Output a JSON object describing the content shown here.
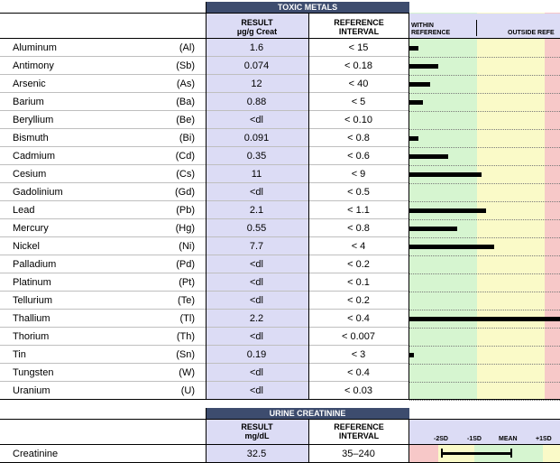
{
  "toxic": {
    "title": "TOXIC METALS",
    "result_header_1": "RESULT",
    "result_header_2": "µg/g Creat",
    "ref_header_1": "REFERENCE",
    "ref_header_2": "INTERVAL",
    "within_1": "WITHIN",
    "within_2": "REFERENCE",
    "outside": "OUTSIDE REFE",
    "rows": [
      {
        "name": "Aluminum",
        "symbol": "(Al)",
        "result": "1.6",
        "ref": "< 15",
        "bar_fraction": 0.06
      },
      {
        "name": "Antimony",
        "symbol": "(Sb)",
        "result": "0.074",
        "ref": "< 0.18",
        "bar_fraction": 0.19
      },
      {
        "name": "Arsenic",
        "symbol": "(As)",
        "result": "12",
        "ref": "< 40",
        "bar_fraction": 0.14
      },
      {
        "name": "Barium",
        "symbol": "(Ba)",
        "result": "0.88",
        "ref": "< 5",
        "bar_fraction": 0.09
      },
      {
        "name": "Beryllium",
        "symbol": "(Be)",
        "result": "<dl",
        "ref": "< 0.10",
        "bar_fraction": 0
      },
      {
        "name": "Bismuth",
        "symbol": "(Bi)",
        "result": "0.091",
        "ref": "< 0.8",
        "bar_fraction": 0.06
      },
      {
        "name": "Cadmium",
        "symbol": "(Cd)",
        "result": "0.35",
        "ref": "< 0.6",
        "bar_fraction": 0.26
      },
      {
        "name": "Cesium",
        "symbol": "(Cs)",
        "result": "11",
        "ref": "< 9",
        "bar_fraction": 0.48
      },
      {
        "name": "Gadolinium",
        "symbol": "(Gd)",
        "result": "<dl",
        "ref": "< 0.5",
        "bar_fraction": 0
      },
      {
        "name": "Lead",
        "symbol": "(Pb)",
        "result": "2.1",
        "ref": "< 1.1",
        "bar_fraction": 0.51
      },
      {
        "name": "Mercury",
        "symbol": "(Hg)",
        "result": "0.55",
        "ref": "< 0.8",
        "bar_fraction": 0.32
      },
      {
        "name": "Nickel",
        "symbol": "(Ni)",
        "result": "7.7",
        "ref": "< 4",
        "bar_fraction": 0.56
      },
      {
        "name": "Palladium",
        "symbol": "(Pd)",
        "result": "<dl",
        "ref": "< 0.2",
        "bar_fraction": 0
      },
      {
        "name": "Platinum",
        "symbol": "(Pt)",
        "result": "<dl",
        "ref": "< 0.1",
        "bar_fraction": 0
      },
      {
        "name": "Tellurium",
        "symbol": "(Te)",
        "result": "<dl",
        "ref": "< 0.2",
        "bar_fraction": 0
      },
      {
        "name": "Thallium",
        "symbol": "(Tl)",
        "result": "2.2",
        "ref": "< 0.4",
        "bar_fraction": 1.0
      },
      {
        "name": "Thorium",
        "symbol": "(Th)",
        "result": "<dl",
        "ref": "< 0.007",
        "bar_fraction": 0
      },
      {
        "name": "Tin",
        "symbol": "(Sn)",
        "result": "0.19",
        "ref": "< 3",
        "bar_fraction": 0.03
      },
      {
        "name": "Tungsten",
        "symbol": "(W)",
        "result": "<dl",
        "ref": "< 0.4",
        "bar_fraction": 0
      },
      {
        "name": "Uranium",
        "symbol": "(U)",
        "result": "<dl",
        "ref": "< 0.03",
        "bar_fraction": 0
      }
    ]
  },
  "creatinine": {
    "title": "URINE CREATININE",
    "result_header_1": "RESULT",
    "result_header_2": "mg/dL",
    "ref_header_1": "REFERENCE",
    "ref_header_2": "INTERVAL",
    "scale_labels": [
      "-2SD",
      "-1SD",
      "MEAN",
      "+1SD"
    ],
    "row": {
      "name": "Creatinine",
      "result": "32.5",
      "ref": "35–240"
    }
  },
  "colors": {
    "header": "#3d4c6e",
    "result_col": "#dcdcf5",
    "green": "#d6f5d0",
    "yellow": "#fafac8",
    "red": "#f7c8c8"
  }
}
